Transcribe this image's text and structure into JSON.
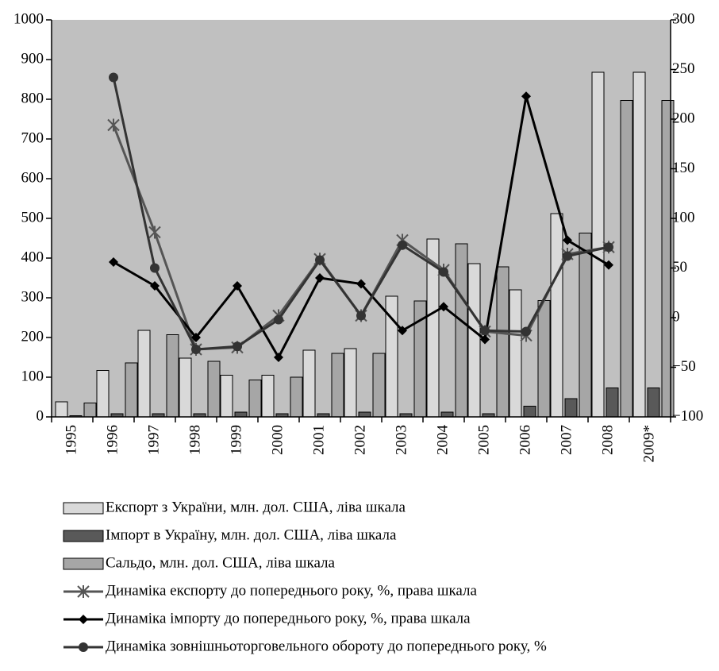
{
  "chart_data": {
    "type": "bar",
    "categories": [
      "1995",
      "1996",
      "1997",
      "1998",
      "1999",
      "2000",
      "2001",
      "2002",
      "2003",
      "2004",
      "2005",
      "2006",
      "2007",
      "2008",
      "2009*"
    ],
    "ylim": [
      0,
      1000
    ],
    "yticks": [
      0,
      100,
      200,
      300,
      400,
      500,
      600,
      700,
      800,
      900,
      1000
    ],
    "y2lim": [
      -100,
      300
    ],
    "y2ticks": [
      {
        "value": -100,
        "label": "−100"
      },
      {
        "value": -50,
        "label": "−50"
      },
      0,
      50,
      100,
      150,
      200,
      250,
      300
    ],
    "plot_background": "#c0c0c0",
    "series": [
      {
        "name": "Експорт з України, млн. дол. США, ліва шкала",
        "type": "bar",
        "color": "#d9d9d9",
        "values": [
          38,
          117,
          218,
          148,
          105,
          105,
          168,
          172,
          304,
          448,
          386,
          320,
          512,
          868,
          868
        ]
      },
      {
        "name": "Імпорт в Україну, млн. дол. США, ліва шкала",
        "type": "bar",
        "color": "#595959",
        "values": [
          3,
          8,
          8,
          8,
          12,
          8,
          8,
          12,
          8,
          12,
          8,
          27,
          46,
          73,
          73
        ]
      },
      {
        "name": "Сальдо, млн. дол. США, ліва шкала",
        "type": "bar",
        "color": "#a6a6a6",
        "values": [
          35,
          136,
          207,
          140,
          93,
          100,
          160,
          160,
          292,
          436,
          378,
          293,
          463,
          797,
          797
        ]
      },
      {
        "name": "Динаміка експорту до попереднього року, %, права шкала",
        "type": "line",
        "axis": "y2",
        "marker": "star",
        "color": "#555555",
        "values": [
          null,
          194,
          86,
          -32,
          -30,
          2,
          59,
          2,
          78,
          48,
          -14,
          -18,
          64,
          71,
          null
        ]
      },
      {
        "name": "Динаміка імпорту до попереднього року, %, права шкала",
        "type": "line",
        "axis": "y2",
        "marker": "diamond",
        "color": "#000000",
        "values": [
          null,
          56,
          32,
          -20,
          32,
          -40,
          40,
          34,
          -13,
          11,
          -22,
          223,
          78,
          53,
          null
        ]
      },
      {
        "name": "Динаміка зовнішньоторговельного обороту до попереднього року, %",
        "type": "line",
        "axis": "y2",
        "marker": "circle",
        "color": "#333333",
        "values": [
          null,
          242,
          50,
          -32,
          -29,
          -2,
          58,
          2,
          73,
          46,
          -13,
          -14,
          62,
          71,
          null
        ]
      }
    ]
  }
}
